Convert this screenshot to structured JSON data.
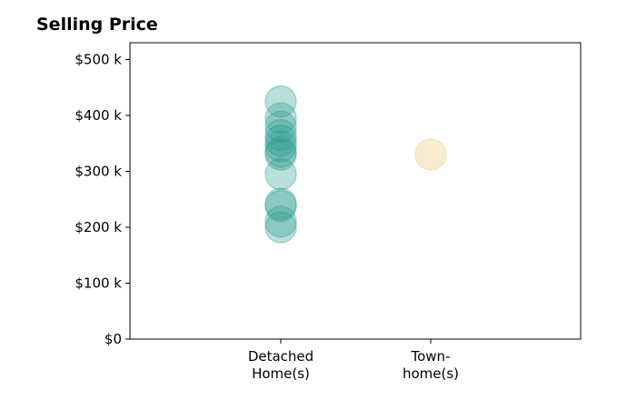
{
  "chart_data": {
    "type": "scatter",
    "title": "Selling Price",
    "xlabel": "",
    "ylabel": "",
    "categories": [
      "Detached\nHome(s)",
      "Town-\nhome(s)"
    ],
    "ylim": [
      0,
      530000
    ],
    "yticks": [
      {
        "value": 0,
        "label": "$0"
      },
      {
        "value": 100000,
        "label": "$100 k"
      },
      {
        "value": 200000,
        "label": "$200 k"
      },
      {
        "value": 300000,
        "label": "$300 k"
      },
      {
        "value": 400000,
        "label": "$400 k"
      },
      {
        "value": 500000,
        "label": "$500 k"
      }
    ],
    "grid": false,
    "colors": {
      "Detached": "#2a9d8f",
      "Town": "#f4dfb0"
    },
    "points": [
      {
        "category": 0,
        "y": 425000
      },
      {
        "category": 0,
        "y": 395000
      },
      {
        "category": 0,
        "y": 380000
      },
      {
        "category": 0,
        "y": 365000
      },
      {
        "category": 0,
        "y": 355000
      },
      {
        "category": 0,
        "y": 345000
      },
      {
        "category": 0,
        "y": 335000
      },
      {
        "category": 0,
        "y": 330000
      },
      {
        "category": 0,
        "y": 295000
      },
      {
        "category": 0,
        "y": 242000
      },
      {
        "category": 0,
        "y": 238000
      },
      {
        "category": 0,
        "y": 210000
      },
      {
        "category": 0,
        "y": 200000
      },
      {
        "category": 1,
        "y": 330000
      }
    ]
  }
}
